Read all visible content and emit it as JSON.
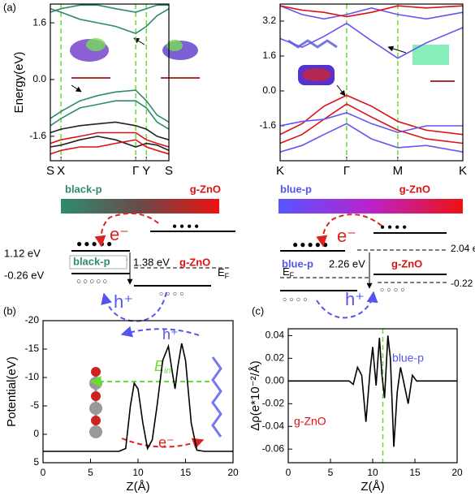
{
  "chart_data": [
    {
      "type": "line",
      "ylabel": "Energy(eV)",
      "x": [
        0,
        0.09,
        0.25,
        0.4,
        0.55,
        0.72,
        0.81,
        0.9,
        1
      ],
      "xlim": [
        0,
        1
      ],
      "xticks": [
        {
          "value": 0,
          "label": "S"
        },
        {
          "value": 0.09,
          "label": "X"
        },
        {
          "value": 0.72,
          "label": "Γ"
        },
        {
          "value": 0.81,
          "label": "Y"
        },
        {
          "value": 1,
          "label": "S"
        }
      ],
      "ylim": [
        -2.29,
        2.13
      ],
      "yticks": [
        1.6,
        {
          "value": 0,
          "label": "0.0"
        },
        -1.6
      ],
      "kpath_line_color": "#66dd33",
      "series": [
        {
          "color": "#2e8b6e",
          "values": [
            2.0,
            1.9,
            1.7,
            1.6,
            1.5,
            1.3,
            1.5,
            1.8,
            2.0
          ]
        },
        {
          "color": "#2e8b6e",
          "values": [
            1.9,
            2.0,
            2.1,
            2.1,
            2.0,
            1.9,
            2.0,
            2.1,
            2.1
          ]
        },
        {
          "color": "#2e8b6e",
          "values": [
            -1.1,
            -0.9,
            -0.6,
            -0.45,
            -0.35,
            -0.3,
            -0.6,
            -1.0,
            -1.2
          ]
        },
        {
          "color": "#2e8b6e",
          "values": [
            -1.3,
            -1.1,
            -0.8,
            -0.7,
            -0.6,
            -0.6,
            -0.8,
            -1.2,
            -1.4
          ]
        },
        {
          "color": "#222222",
          "values": [
            -1.5,
            -1.4,
            -1.3,
            -1.25,
            -1.2,
            -1.3,
            -1.4,
            -1.6,
            -1.7
          ]
        },
        {
          "color": "#222222",
          "values": [
            -1.9,
            -1.85,
            -1.7,
            -1.6,
            -1.7,
            -1.9,
            -1.8,
            -1.85,
            -2.0
          ]
        },
        {
          "color": "#dd1111",
          "values": [
            -1.8,
            -1.7,
            -1.6,
            -1.5,
            -1.5,
            -1.5,
            -1.7,
            -1.8,
            -1.9
          ]
        },
        {
          "color": "#dd1111",
          "values": [
            -2.1,
            -2.0,
            -1.9,
            -1.9,
            -1.8,
            -1.7,
            -1.9,
            -2.0,
            -2.1
          ]
        }
      ]
    },
    {
      "type": "line",
      "x": [
        0,
        0.12,
        0.24,
        0.364,
        0.5,
        0.644,
        0.8,
        1
      ],
      "xlim": [
        0,
        1
      ],
      "xticks": [
        {
          "value": 0,
          "label": "K"
        },
        {
          "value": 0.364,
          "label": "Γ"
        },
        {
          "value": 0.644,
          "label": "M"
        },
        {
          "value": 1,
          "label": "K"
        }
      ],
      "ylim": [
        -3.2,
        3.98
      ],
      "yticks": [
        3.2,
        1.6,
        {
          "value": 0,
          "label": "0.0"
        },
        -1.6
      ],
      "kpath_line_color": "#66dd33",
      "series": [
        {
          "color": "#6655ee",
          "values": [
            2.4,
            2.0,
            2.5,
            3.1,
            2.3,
            1.5,
            2.2,
            2.9
          ]
        },
        {
          "color": "#6655ee",
          "values": [
            3.9,
            3.5,
            3.3,
            3.5,
            3.8,
            3.5,
            3.3,
            3.6
          ]
        },
        {
          "color": "#dd1111",
          "values": [
            3.9,
            3.7,
            3.6,
            3.4,
            3.6,
            3.9,
            3.8,
            3.9
          ]
        },
        {
          "color": "#dd1111",
          "values": [
            -2.0,
            -1.5,
            -0.7,
            -0.2,
            -0.7,
            -1.4,
            -1.8,
            -2.0
          ]
        },
        {
          "color": "#dd1111",
          "values": [
            -2.4,
            -2.0,
            -1.3,
            -0.6,
            -1.2,
            -1.8,
            -2.2,
            -2.4
          ]
        },
        {
          "color": "#6655ee",
          "values": [
            -1.6,
            -1.4,
            -1.3,
            -1.0,
            -1.5,
            -1.9,
            -1.6,
            -1.6
          ]
        },
        {
          "color": "#6655ee",
          "values": [
            -2.8,
            -2.5,
            -2.0,
            -1.5,
            -2.2,
            -2.6,
            -2.5,
            -2.8
          ]
        }
      ]
    },
    {
      "type": "line",
      "xlabel": "Z(Å)",
      "ylabel": "Potential(eV)",
      "x": [
        0,
        8,
        8.7,
        9.2,
        9.6,
        10,
        10.5,
        11,
        11.5,
        12,
        12.6,
        13.2,
        13.6,
        13.9,
        14.2,
        14.6,
        15,
        15.6,
        16.2,
        17,
        20
      ],
      "xlim": [
        0,
        20
      ],
      "xticks": [
        0,
        5,
        10,
        15,
        20
      ],
      "ylim": [
        5,
        -20
      ],
      "yticks": [
        5,
        0,
        -5,
        -10,
        -15,
        -20
      ],
      "series": [
        {
          "color": "#000000",
          "values": [
            3,
            3,
            2.5,
            -5,
            -9,
            -8,
            -2,
            2.5,
            1,
            -5,
            -13,
            -15.5,
            -11,
            -8,
            -12,
            -16,
            -13,
            -2,
            2.8,
            3,
            3
          ]
        }
      ]
    },
    {
      "type": "line",
      "xlabel": "Z(Å)",
      "ylabel": "Δρ(e*10⁻²/Å)",
      "x": [
        0,
        6.5,
        7.2,
        7.7,
        8.2,
        8.7,
        9.2,
        9.7,
        10,
        10.4,
        10.8,
        11.1,
        11.4,
        11.8,
        12.1,
        12.5,
        12.9,
        13.3,
        13.7,
        14.2,
        14.7,
        15.2,
        16,
        20
      ],
      "xlim": [
        0,
        20
      ],
      "xticks": [
        0,
        5,
        10,
        15,
        20
      ],
      "ylim": [
        -0.072,
        0.046
      ],
      "yticks": [
        0.04,
        0.02,
        {
          "value": 0,
          "label": "0.00"
        },
        -0.02,
        -0.04,
        -0.06
      ],
      "vline": 11.2,
      "vline_color": "#66dd33",
      "series": [
        {
          "color": "#000000",
          "values": [
            0,
            0,
            0,
            -0.003,
            0.012,
            0.005,
            -0.036,
            0.01,
            0.03,
            -0.004,
            0.038,
            0.005,
            -0.015,
            0.04,
            0.02,
            -0.058,
            -0.01,
            0.012,
            -0.002,
            -0.02,
            0.005,
            0,
            0,
            0
          ]
        }
      ]
    }
  ],
  "panels": {
    "a": "(a)",
    "b": "(b)",
    "c": "(c)"
  },
  "left_diagram": {
    "bar_left": "black-p",
    "bar_right": "g-ZnO",
    "electron": "e⁻",
    "hole": "h⁺",
    "cb_energy": "1.12 eV",
    "vb_energy": "-0.26 eV",
    "layer": "black-p",
    "gap": "1.38 eV",
    "partner": "g-ZnO",
    "fermi": {
      "base": "E",
      "sub": "F"
    }
  },
  "right_diagram": {
    "bar_left": "blue-p",
    "bar_right": "g-ZnO",
    "electron": "e⁻",
    "hole": "h⁺",
    "cb_energy": "2.04 eV",
    "layer": "blue-p",
    "gap": "2.26 eV",
    "partner": "g-ZnO",
    "fermi": {
      "base": "E",
      "sub": "F"
    },
    "vb_energy": "-0.22 eV"
  },
  "panel_b_labels": {
    "hole": "h⁺",
    "field": {
      "base": "E",
      "sub": "in"
    },
    "electron": "e⁻"
  },
  "panel_c_labels": {
    "top": "blue-p",
    "bottom": "g-ZnO"
  }
}
